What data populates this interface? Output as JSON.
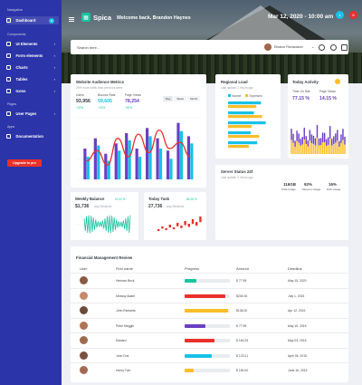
{
  "sidebar": {
    "section_navigation": "Navigation",
    "dashboard": "Dashboard",
    "dashboard_badge": "4",
    "section_components": "Components",
    "ui_elements": "UI Elements",
    "form_elements": "Form elements",
    "charts": "Charts",
    "tables": "Tables",
    "icons": "Icons",
    "section_pages": "Pages",
    "user_pages": "User Pages",
    "section_apps": "Apps",
    "documentation": "Documentation",
    "upgrade": "Upgrade to pro"
  },
  "header": {
    "brand": "Spica",
    "welcome": "Welcome back, Brandon Haynes",
    "date": "Mar 12, 2020 - 10:00 am",
    "notif_count": "4"
  },
  "search": {
    "placeholder": "Search here...",
    "user": "Eleanor Richardson"
  },
  "audience": {
    "title": "Website Audience Metrics",
    "subtitle": "25% more traffic than previous week",
    "users_label": "Users",
    "users_value": "93,956",
    "users_pct": "+42%",
    "bounce_label": "Bounce Rate",
    "bounce_value": "59,605",
    "bounce_pct": "+22%",
    "views_label": "Page Views",
    "views_value": "78,254",
    "views_pct": "+62%",
    "tab_day": "Day",
    "tab_week": "Week",
    "tab_month": "Month"
  },
  "regional": {
    "title": "Regional Load",
    "subtitle": "Last update: 2 Hours ago",
    "legend_income": "Income",
    "legend_expenses": "Expenses",
    "income_color": "#17c1e8",
    "expenses_color": "#fbbd2a"
  },
  "today_activity": {
    "title": "Today Activity",
    "time_label": "Time On Site",
    "time_value": "77.15 %",
    "views_label": "Page Views",
    "views_value": "14.15 %"
  },
  "server": {
    "title": "Server Status 24f",
    "subtitle": "Last update: 2 Hours ago",
    "total_value": "116GB",
    "total_label": "Total Usage",
    "memory_value": "92%",
    "memory_label": "Memory Usage",
    "disk_value": "16%",
    "disk_label": "Disk Usage"
  },
  "weekly_balance": {
    "title": "Weekly Balance",
    "change": "20.32 %",
    "value": "$1,736",
    "sub": "Avg Sessions"
  },
  "today_task": {
    "title": "Today Task",
    "change": "86.28 %",
    "value": "27,736",
    "sub": "Avg Sessions"
  },
  "financial": {
    "title": "Financial Management Review",
    "columns": [
      "User",
      "First name",
      "Progress",
      "Amount",
      "Deadline"
    ],
    "rows": [
      {
        "name": "Herman Beck",
        "amount": "$ 77.99",
        "deadline": "May 15, 2020",
        "progress": 0.25,
        "color": "#19c39e",
        "avatar": "#8a5a44"
      },
      {
        "name": "Messsy Adam",
        "amount": "$245.30",
        "deadline": "July 1, 2015",
        "progress": 0.9,
        "color": "#e9312a",
        "avatar": "#c48a6a"
      },
      {
        "name": "John Richards",
        "amount": "$138.00",
        "deadline": "Apr 12, 2015",
        "progress": 0.95,
        "color": "#fbbd2a",
        "avatar": "#6b4a3a"
      },
      {
        "name": "Peter Meggik",
        "amount": "$ 77.99",
        "deadline": "May 15, 2015",
        "progress": 0.45,
        "color": "#6a3fc2",
        "avatar": "#b07356"
      },
      {
        "name": "Edward",
        "amount": "$ 160.25",
        "deadline": "May 03, 2015",
        "progress": 0.65,
        "color": "#e9312a",
        "avatar": "#9e6b4f"
      },
      {
        "name": "John Doe",
        "amount": "$ 123.21",
        "deadline": "April 05, 2015",
        "progress": 0.6,
        "color": "#17c1e8",
        "avatar": "#7a5240"
      },
      {
        "name": "Henry Tom",
        "amount": "$ 150.00",
        "deadline": "June 16, 2015",
        "progress": 0.2,
        "color": "#fbbd2a",
        "avatar": "#a36a50"
      }
    ]
  },
  "chart_data": [
    {
      "type": "bar",
      "name_ref": "audience",
      "categories": [
        "1",
        "2",
        "3",
        "4",
        "5",
        "6",
        "7",
        "8",
        "9",
        "10",
        "11"
      ],
      "series": [
        {
          "values": [
            30,
            40,
            25,
            35,
            45,
            30,
            50,
            40,
            28,
            55,
            42
          ],
          "color": "#6a3fc2"
        },
        {
          "values": [
            22,
            33,
            18,
            28,
            38,
            22,
            42,
            30,
            20,
            47,
            35
          ],
          "color": "#17c1e8"
        },
        {
          "values": [
            18,
            28,
            14,
            40,
            22,
            44,
            26,
            48,
            30,
            36,
            22
          ],
          "color": "#e9312a"
        }
      ],
      "ylim": [
        0,
        60
      ]
    },
    {
      "type": "bar",
      "name_ref": "regional",
      "categories": [
        "1",
        "2",
        "3",
        "4",
        "5"
      ],
      "series": [
        {
          "values": [
            70,
            55,
            80,
            48,
            62
          ],
          "color": "#17c1e8"
        },
        {
          "values": [
            60,
            72,
            50,
            66,
            44
          ],
          "color": "#fbbd2a"
        }
      ],
      "ylim": [
        0,
        100
      ]
    }
  ]
}
